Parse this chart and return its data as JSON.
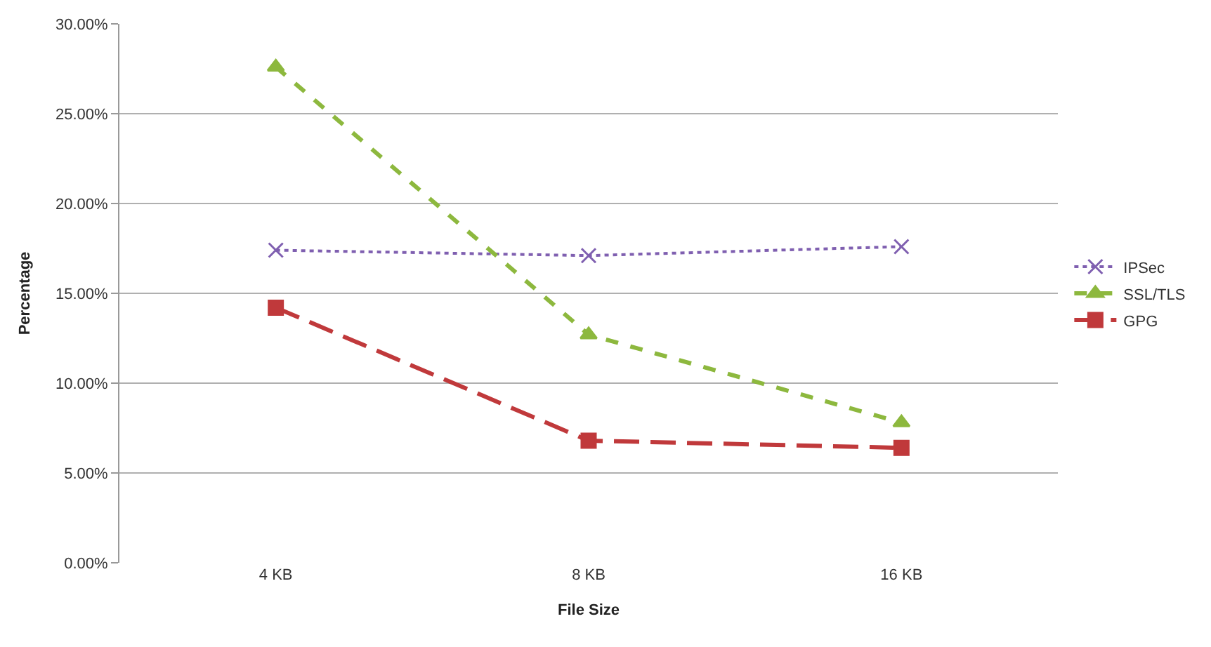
{
  "chart_data": {
    "type": "line",
    "xlabel": "File Size",
    "ylabel": "Percentage",
    "categories": [
      "4 KB",
      "8 KB",
      "16 KB"
    ],
    "series": [
      {
        "name": "IPSec",
        "color": "#7f5fb0",
        "values": [
          17.4,
          17.1,
          17.6
        ],
        "marker": "cross",
        "line_style": "dotted"
      },
      {
        "name": "SSL/TLS",
        "color": "#8db83e",
        "values": [
          27.6,
          12.7,
          7.8
        ],
        "marker": "triangle",
        "line_style": "dashed"
      },
      {
        "name": "GPG",
        "color": "#c0393b",
        "values": [
          14.2,
          6.8,
          6.4
        ],
        "marker": "square",
        "line_style": "dashed"
      }
    ],
    "ylim": [
      0,
      30
    ],
    "yticks": [
      {
        "value": 0,
        "label": "0.00%"
      },
      {
        "value": 5,
        "label": "5.00%"
      },
      {
        "value": 10,
        "label": "10.00%"
      },
      {
        "value": 15,
        "label": "15.00%"
      },
      {
        "value": 20,
        "label": "20.00%"
      },
      {
        "value": 25,
        "label": "25.00%"
      },
      {
        "value": 30,
        "label": "30.00%"
      }
    ],
    "grid": "y",
    "legend": "right"
  }
}
